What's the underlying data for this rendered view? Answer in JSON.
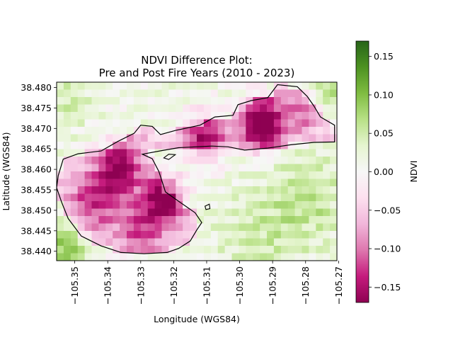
{
  "chart_data": {
    "type": "heatmap",
    "title_line1": "NDVI Difference Plot:",
    "title_line2": "Pre and Post Fire Years (2010 - 2023)",
    "xlabel": "Longitude (WGS84)",
    "ylabel": "Latitude (WGS84)",
    "xlim": [
      -105.3555,
      -105.2705
    ],
    "ylim": [
      38.4377,
      38.4813
    ],
    "x_ticks": [
      "−105.35",
      "−105.34",
      "−105.33",
      "−105.32",
      "−105.31",
      "−105.30",
      "−105.29",
      "−105.28",
      "−105.27"
    ],
    "x_tick_values": [
      -105.35,
      -105.34,
      -105.33,
      -105.32,
      -105.31,
      -105.3,
      -105.29,
      -105.28,
      -105.27
    ],
    "y_ticks": [
      "38.440",
      "38.445",
      "38.450",
      "38.455",
      "38.460",
      "38.465",
      "38.470",
      "38.475",
      "38.480"
    ],
    "y_tick_values": [
      38.44,
      38.445,
      38.45,
      38.455,
      38.46,
      38.465,
      38.47,
      38.475,
      38.48
    ],
    "colorbar": {
      "label": "NDVI",
      "vmin": -0.17,
      "vmax": 0.17,
      "ticks": [
        "0.15",
        "0.10",
        "0.05",
        "0.00",
        "−0.05",
        "−0.10",
        "−0.15"
      ],
      "tick_values": [
        0.15,
        0.1,
        0.05,
        0.0,
        -0.05,
        -0.1,
        -0.15
      ],
      "colormap": "PiYG"
    },
    "grid": "off",
    "fire_perimeter": [
      [
        -105.355,
        38.4585
      ],
      [
        -105.3535,
        38.4625
      ],
      [
        -105.349,
        38.4638
      ],
      [
        -105.342,
        38.4645
      ],
      [
        -105.337,
        38.4668
      ],
      [
        -105.332,
        38.4688
      ],
      [
        -105.33,
        38.4708
      ],
      [
        -105.3265,
        38.4705
      ],
      [
        -105.324,
        38.4685
      ],
      [
        -105.3195,
        38.4695
      ],
      [
        -105.312,
        38.4708
      ],
      [
        -105.3075,
        38.4728
      ],
      [
        -105.302,
        38.4732
      ],
      [
        -105.3005,
        38.4758
      ],
      [
        -105.2965,
        38.4768
      ],
      [
        -105.2915,
        38.4775
      ],
      [
        -105.2885,
        38.4807
      ],
      [
        -105.2825,
        38.4802
      ],
      [
        -105.2795,
        38.4778
      ],
      [
        -105.2775,
        38.4755
      ],
      [
        -105.2755,
        38.4728
      ],
      [
        -105.2712,
        38.4708
      ],
      [
        -105.2712,
        38.4667
      ],
      [
        -105.2775,
        38.4666
      ],
      [
        -105.2845,
        38.466
      ],
      [
        -105.2915,
        38.4652
      ],
      [
        -105.2985,
        38.4647
      ],
      [
        -105.3035,
        38.4655
      ],
      [
        -105.3085,
        38.4657
      ],
      [
        -105.3185,
        38.4653
      ],
      [
        -105.3235,
        38.4646
      ],
      [
        -105.3295,
        38.4637
      ],
      [
        -105.3265,
        38.4626
      ],
      [
        -105.3245,
        38.4595
      ],
      [
        -105.3235,
        38.457
      ],
      [
        -105.3225,
        38.4545
      ],
      [
        -105.319,
        38.4525
      ],
      [
        -105.316,
        38.4508
      ],
      [
        -105.3135,
        38.4494
      ],
      [
        -105.3115,
        38.447
      ],
      [
        -105.313,
        38.4452
      ],
      [
        -105.315,
        38.4425
      ],
      [
        -105.3185,
        38.4407
      ],
      [
        -105.322,
        38.4397
      ],
      [
        -105.329,
        38.4394
      ],
      [
        -105.336,
        38.4397
      ],
      [
        -105.342,
        38.4413
      ],
      [
        -105.348,
        38.4437
      ],
      [
        -105.352,
        38.448
      ],
      [
        -105.354,
        38.452
      ],
      [
        -105.3555,
        38.4555
      ],
      [
        -105.355,
        38.4585
      ]
    ],
    "inner_features": [
      [
        [
          -105.323,
          38.4628
        ],
        [
          -105.3215,
          38.4637
        ],
        [
          -105.3195,
          38.4636
        ],
        [
          -105.3215,
          38.4624
        ],
        [
          -105.323,
          38.4628
        ]
      ],
      [
        [
          -105.3105,
          38.451
        ],
        [
          -105.3092,
          38.4515
        ],
        [
          -105.309,
          38.4504
        ],
        [
          -105.3102,
          38.4502
        ],
        [
          -105.3105,
          38.451
        ]
      ]
    ],
    "grid_cols": 40,
    "grid_rows": 24,
    "hotspots": [
      {
        "lon": -105.293,
        "lat": 38.471,
        "amp": -0.17,
        "r": 0.0045
      },
      {
        "lon": -105.3365,
        "lat": 38.4605,
        "amp": -0.13,
        "r": 0.0045
      },
      {
        "lon": -105.3225,
        "lat": 38.453,
        "amp": -0.15,
        "r": 0.004
      },
      {
        "lon": -105.311,
        "lat": 38.468,
        "amp": -0.11,
        "r": 0.0045
      },
      {
        "lon": -105.3445,
        "lat": 38.452,
        "amp": -0.09,
        "r": 0.005
      },
      {
        "lon": -105.33,
        "lat": 38.446,
        "amp": -0.08,
        "r": 0.005
      },
      {
        "lon": -105.28,
        "lat": 38.474,
        "amp": -0.06,
        "r": 0.004
      },
      {
        "lon": -105.352,
        "lat": 38.441,
        "amp": 0.08,
        "r": 0.0045
      },
      {
        "lon": -105.272,
        "lat": 38.479,
        "amp": 0.06,
        "r": 0.0035
      },
      {
        "lon": -105.28,
        "lat": 38.452,
        "amp": 0.045,
        "r": 0.008
      },
      {
        "lon": -105.295,
        "lat": 38.444,
        "amp": 0.03,
        "r": 0.008
      },
      {
        "lon": -105.352,
        "lat": 38.476,
        "amp": 0.04,
        "r": 0.004
      }
    ]
  }
}
